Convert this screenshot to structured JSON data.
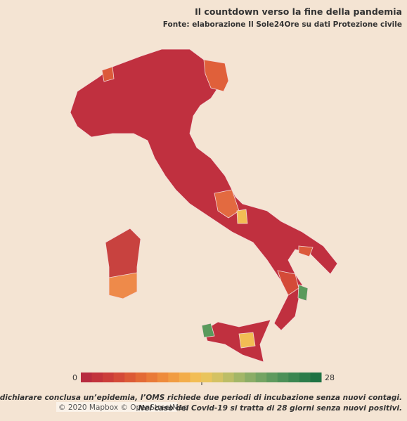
{
  "header": {
    "title": "Il countdown verso la fine della pandemia",
    "subtitle": "Fonte: elaborazione Il Sole24Ore su dati Protezione civile"
  },
  "legend": {
    "min": 0,
    "max": 28,
    "colors": [
      "#b72b3f",
      "#c2333c",
      "#cb3d3a",
      "#d44a38",
      "#dc5a36",
      "#e36a36",
      "#e97a38",
      "#ee8b3c",
      "#f19c42",
      "#f3ad4a",
      "#f2bd54",
      "#e9c45c",
      "#d4c263",
      "#bcbd66",
      "#a3b667",
      "#8bad66",
      "#74a463",
      "#5f9a5e",
      "#4c9058",
      "#3b8651",
      "#2c7c4a",
      "#1f7243"
    ]
  },
  "attribution": "© 2020 Mapbox © OpenStreetMap",
  "footnote": [
    "Per dichiarare conclusa un’epidemia, l’OMS richiede due periodi di incubazione senza nuovi contagi.",
    "Nel caso del Covid-19 si tratta di 28 giorni senza nuovi positivi."
  ]
}
